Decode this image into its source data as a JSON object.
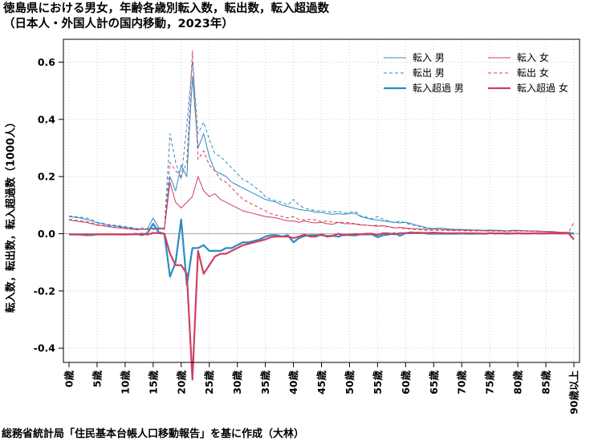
{
  "chart_data": {
    "type": "line",
    "title_lines": [
      "徳島県における男女，年齢各歳別転入数，転出数，転入超過数",
      "（日本人・外国人計の国内移動，2023年）"
    ],
    "ylabel": "転入数，転出数，転入超過数（1000人）",
    "footer": "総務省統計局「住民基本台帳人口移動報告」を基に作成（大林）",
    "ylim": [
      -0.45,
      0.68
    ],
    "yticks": [
      -0.4,
      -0.2,
      0.0,
      0.2,
      0.4,
      0.6
    ],
    "ytick_labels": [
      "-0.4",
      "-0.2",
      "0.0",
      "0.2",
      "0.4",
      "0.6"
    ],
    "xlim": [
      -1,
      91
    ],
    "xticks": [
      0,
      5,
      10,
      15,
      20,
      25,
      30,
      35,
      40,
      45,
      50,
      55,
      60,
      65,
      70,
      75,
      80,
      85,
      90
    ],
    "xtick_labels": [
      "0歳",
      "5歳",
      "10歳",
      "15歳",
      "20歳",
      "25歳",
      "30歳",
      "35歳",
      "40歳",
      "45歳",
      "50歳",
      "55歳",
      "60歳",
      "65歳",
      "70歳",
      "75歳",
      "80歳",
      "85歳",
      "90歳以上"
    ],
    "grid": true,
    "legend_position": "top-right",
    "colors": {
      "male": "#2b8cc4",
      "female": "#d0405e",
      "zero_line": "#aaaaaa",
      "grid": "#cccccc"
    },
    "series": [
      {
        "name": "転入 男",
        "sex": "male",
        "style": "thin",
        "values": [
          0.06,
          0.058,
          0.055,
          0.05,
          0.045,
          0.038,
          0.035,
          0.03,
          0.028,
          0.025,
          0.022,
          0.02,
          0.018,
          0.015,
          0.018,
          0.055,
          0.02,
          0.02,
          0.2,
          0.15,
          0.24,
          0.2,
          0.55,
          0.3,
          0.35,
          0.27,
          0.22,
          0.21,
          0.2,
          0.18,
          0.17,
          0.16,
          0.15,
          0.14,
          0.13,
          0.12,
          0.115,
          0.11,
          0.1,
          0.095,
          0.09,
          0.085,
          0.082,
          0.08,
          0.075,
          0.075,
          0.07,
          0.068,
          0.07,
          0.068,
          0.07,
          0.072,
          0.06,
          0.055,
          0.05,
          0.048,
          0.045,
          0.042,
          0.04,
          0.038,
          0.04,
          0.035,
          0.03,
          0.025,
          0.02,
          0.018,
          0.02,
          0.018,
          0.016,
          0.015,
          0.015,
          0.014,
          0.013,
          0.013,
          0.012,
          0.013,
          0.012,
          0.012,
          0.01,
          0.012,
          0.012,
          0.011,
          0.01,
          0.01,
          0.009,
          0.008,
          0.008,
          0.006,
          0.005,
          0.004,
          0.002
        ]
      },
      {
        "name": "転出 男",
        "sex": "male",
        "style": "dashed",
        "values": [
          0.062,
          0.06,
          0.058,
          0.055,
          0.05,
          0.04,
          0.037,
          0.032,
          0.03,
          0.028,
          0.025,
          0.022,
          0.018,
          0.02,
          0.015,
          0.02,
          0.015,
          0.02,
          0.35,
          0.25,
          0.19,
          0.38,
          0.6,
          0.35,
          0.39,
          0.33,
          0.28,
          0.27,
          0.25,
          0.23,
          0.21,
          0.19,
          0.18,
          0.165,
          0.15,
          0.13,
          0.12,
          0.115,
          0.11,
          0.1,
          0.12,
          0.1,
          0.09,
          0.085,
          0.08,
          0.08,
          0.078,
          0.075,
          0.08,
          0.072,
          0.075,
          0.078,
          0.062,
          0.058,
          0.052,
          0.06,
          0.05,
          0.045,
          0.038,
          0.045,
          0.038,
          0.03,
          0.028,
          0.022,
          0.02,
          0.018,
          0.02,
          0.018,
          0.016,
          0.015,
          0.014,
          0.014,
          0.013,
          0.012,
          0.012,
          0.011,
          0.011,
          0.01,
          0.01,
          0.011,
          0.011,
          0.01,
          0.009,
          0.009,
          0.008,
          0.007,
          0.006,
          0.005,
          0.004,
          0.003,
          0.001
        ]
      },
      {
        "name": "転入 女",
        "sex": "female",
        "style": "thin",
        "values": [
          0.048,
          0.045,
          0.042,
          0.04,
          0.035,
          0.03,
          0.028,
          0.025,
          0.022,
          0.02,
          0.018,
          0.016,
          0.014,
          0.015,
          0.015,
          0.018,
          0.02,
          0.015,
          0.18,
          0.11,
          0.09,
          0.11,
          0.13,
          0.2,
          0.15,
          0.13,
          0.14,
          0.12,
          0.11,
          0.1,
          0.09,
          0.08,
          0.075,
          0.07,
          0.065,
          0.06,
          0.058,
          0.055,
          0.05,
          0.045,
          0.045,
          0.04,
          0.045,
          0.04,
          0.038,
          0.04,
          0.035,
          0.033,
          0.04,
          0.035,
          0.035,
          0.034,
          0.03,
          0.03,
          0.028,
          0.026,
          0.028,
          0.025,
          0.02,
          0.022,
          0.02,
          0.018,
          0.018,
          0.016,
          0.015,
          0.016,
          0.015,
          0.014,
          0.013,
          0.013,
          0.013,
          0.012,
          0.012,
          0.011,
          0.01,
          0.011,
          0.01,
          0.01,
          0.01,
          0.01,
          0.011,
          0.01,
          0.009,
          0.01,
          0.008,
          0.008,
          0.007,
          0.006,
          0.005,
          0.005,
          0.002
        ]
      },
      {
        "name": "転出 女",
        "sex": "female",
        "style": "dashed",
        "values": [
          0.05,
          0.048,
          0.045,
          0.042,
          0.038,
          0.032,
          0.03,
          0.027,
          0.024,
          0.022,
          0.02,
          0.018,
          0.016,
          0.015,
          0.018,
          0.015,
          0.018,
          0.015,
          0.25,
          0.22,
          0.2,
          0.25,
          0.64,
          0.26,
          0.29,
          0.24,
          0.22,
          0.19,
          0.18,
          0.16,
          0.14,
          0.12,
          0.11,
          0.1,
          0.09,
          0.08,
          0.07,
          0.065,
          0.06,
          0.055,
          0.06,
          0.05,
          0.048,
          0.05,
          0.048,
          0.042,
          0.045,
          0.04,
          0.04,
          0.04,
          0.038,
          0.035,
          0.032,
          0.03,
          0.028,
          0.03,
          0.026,
          0.024,
          0.022,
          0.02,
          0.018,
          0.016,
          0.014,
          0.013,
          0.012,
          0.012,
          0.012,
          0.012,
          0.011,
          0.011,
          0.011,
          0.01,
          0.01,
          0.01,
          0.01,
          0.009,
          0.009,
          0.009,
          0.008,
          0.009,
          0.009,
          0.009,
          0.008,
          0.008,
          0.007,
          0.007,
          0.006,
          0.005,
          0.004,
          0.003,
          0.04
        ]
      },
      {
        "name": "転入超過 男",
        "sex": "male",
        "style": "thick",
        "values": [
          -0.002,
          -0.002,
          -0.003,
          -0.005,
          -0.005,
          -0.002,
          -0.002,
          -0.002,
          -0.002,
          -0.003,
          -0.003,
          -0.002,
          0.0,
          -0.005,
          0.003,
          0.035,
          0.005,
          0.0,
          -0.15,
          -0.1,
          0.05,
          -0.18,
          -0.05,
          -0.05,
          -0.04,
          -0.06,
          -0.06,
          -0.06,
          -0.05,
          -0.05,
          -0.04,
          -0.03,
          -0.03,
          -0.025,
          -0.02,
          -0.01,
          -0.005,
          -0.005,
          -0.01,
          -0.005,
          -0.03,
          -0.015,
          -0.008,
          -0.005,
          -0.005,
          -0.005,
          -0.008,
          -0.007,
          -0.01,
          -0.004,
          -0.005,
          -0.006,
          -0.002,
          -0.003,
          -0.002,
          -0.012,
          -0.005,
          -0.003,
          0.002,
          -0.007,
          0.002,
          0.005,
          0.002,
          0.003,
          0.0,
          0.0,
          0.0,
          0.0,
          0.0,
          0.0,
          0.001,
          0.0,
          0.0,
          0.001,
          0.0,
          0.002,
          0.001,
          0.002,
          0.0,
          0.001,
          0.001,
          0.001,
          0.001,
          0.001,
          0.001,
          0.001,
          0.002,
          0.001,
          0.001,
          0.001,
          0.001
        ]
      },
      {
        "name": "転入超過 女",
        "sex": "female",
        "style": "thick",
        "values": [
          -0.002,
          -0.003,
          -0.003,
          -0.002,
          -0.003,
          -0.002,
          -0.002,
          -0.002,
          -0.002,
          -0.002,
          -0.002,
          -0.002,
          -0.002,
          0.0,
          -0.003,
          0.003,
          0.002,
          0.0,
          -0.07,
          -0.11,
          -0.11,
          -0.14,
          -0.51,
          -0.06,
          -0.14,
          -0.11,
          -0.08,
          -0.07,
          -0.07,
          -0.06,
          -0.05,
          -0.04,
          -0.035,
          -0.03,
          -0.025,
          -0.02,
          -0.012,
          -0.01,
          -0.01,
          -0.01,
          -0.015,
          -0.01,
          -0.003,
          -0.01,
          -0.01,
          -0.002,
          -0.01,
          -0.007,
          0.0,
          -0.005,
          -0.003,
          -0.001,
          -0.002,
          0.0,
          0.0,
          -0.004,
          0.002,
          0.001,
          -0.002,
          0.002,
          0.002,
          0.002,
          0.004,
          0.003,
          0.003,
          0.004,
          0.003,
          0.002,
          0.002,
          0.002,
          0.002,
          0.002,
          0.002,
          0.001,
          0.0,
          0.002,
          0.001,
          0.001,
          0.002,
          0.001,
          0.002,
          0.001,
          0.001,
          0.002,
          0.001,
          0.001,
          0.001,
          0.001,
          0.001,
          0.002,
          -0.02
        ]
      }
    ]
  }
}
